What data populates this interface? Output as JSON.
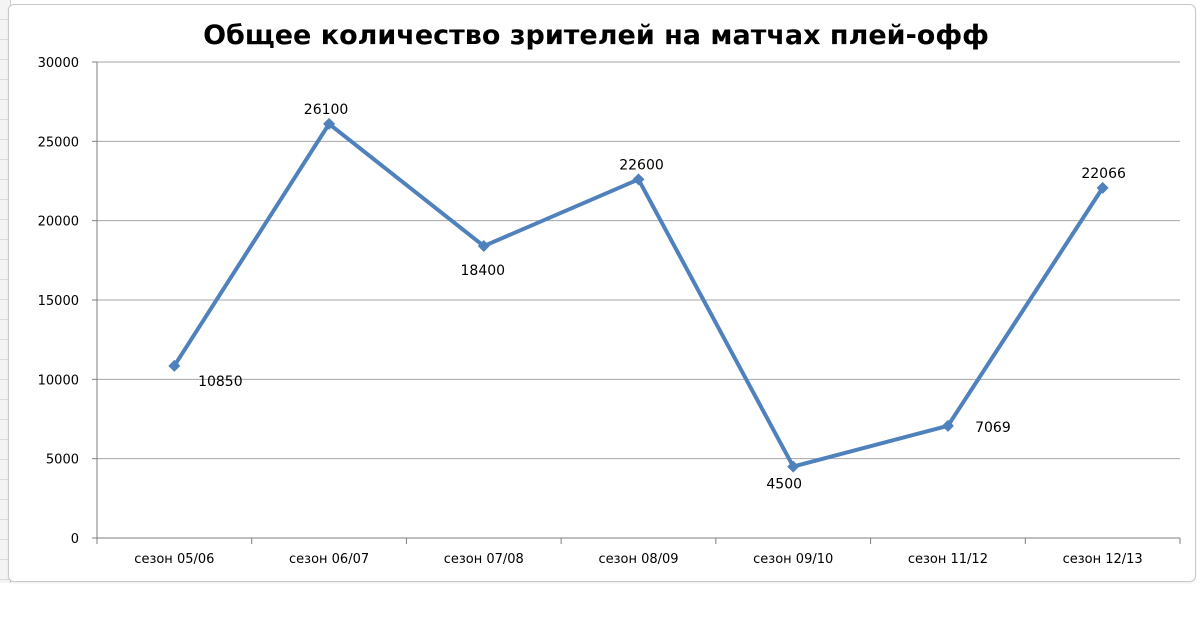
{
  "chart_data": {
    "type": "line",
    "title": "Общее количество зрителей на матчах плей-офф",
    "xlabel": "",
    "ylabel": "",
    "categories": [
      "сезон 05/06",
      "сезон 06/07",
      "сезон 07/08",
      "сезон 08/09",
      "сезон 09/10",
      "сезон 11/12",
      "сезон 12/13"
    ],
    "series": [
      {
        "values": [
          10850,
          26100,
          18400,
          22600,
          4500,
          7069,
          22066
        ]
      }
    ],
    "data_labels": [
      "10850",
      "26100",
      "18400",
      "22600",
      "4500",
      "7069",
      "22066"
    ],
    "ylim": [
      0,
      30000
    ],
    "yticks": [
      "0",
      "5000",
      "10000",
      "15000",
      "20000",
      "25000",
      "30000"
    ],
    "grid": true,
    "legend": "none",
    "colors": {
      "line": "#4f81bd",
      "grid": "#a6a6a6",
      "axis": "#7f7f7f"
    }
  }
}
